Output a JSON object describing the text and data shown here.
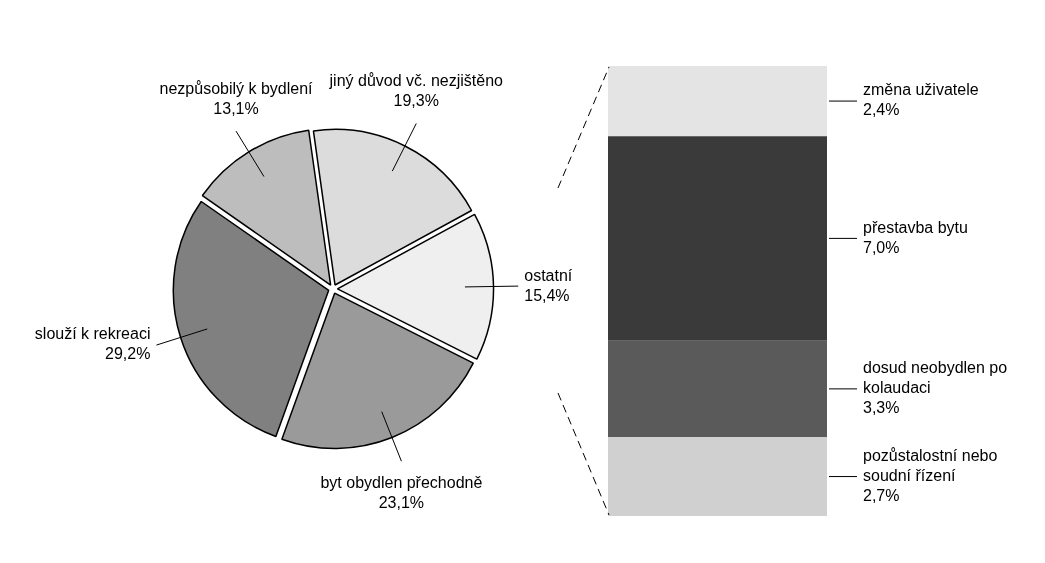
{
  "chart_data": [
    {
      "type": "pie",
      "categories": [
        "jiný důvod vč. nezjištěno",
        "ostatní",
        "byt obydlen přechodně",
        "slouží k rekreaci",
        "nezpůsobilý k bydlení"
      ],
      "values": [
        19.3,
        15.4,
        23.1,
        29.2,
        13.1
      ],
      "colors": [
        "#dcdcdc",
        "#efefef",
        "#9a9a9a",
        "#808080",
        "#bdbdbd"
      ],
      "value_labels": [
        "19,3%",
        "15,4%",
        "23,1%",
        "29,2%",
        "13,1%"
      ]
    },
    {
      "type": "bar",
      "stacked": true,
      "categories": [
        null
      ],
      "series": [
        {
          "name": "pozůstalostní nebo soudní řízení",
          "color": "#d0d0d0",
          "values": [
            2.7
          ],
          "value_labels": [
            "2,7%"
          ]
        },
        {
          "name": "dosud neobydlen po kolaudaci",
          "color": "#5a5a5a",
          "values": [
            3.3
          ],
          "value_labels": [
            "3,3%"
          ]
        },
        {
          "name": "přestavba bytu",
          "color": "#3a3a3a",
          "values": [
            7.0
          ],
          "value_labels": [
            "7,0%"
          ]
        },
        {
          "name": "změna uživatele",
          "color": "#e4e4e4",
          "values": [
            2.4
          ],
          "value_labels": [
            "2,4%"
          ]
        }
      ]
    }
  ]
}
